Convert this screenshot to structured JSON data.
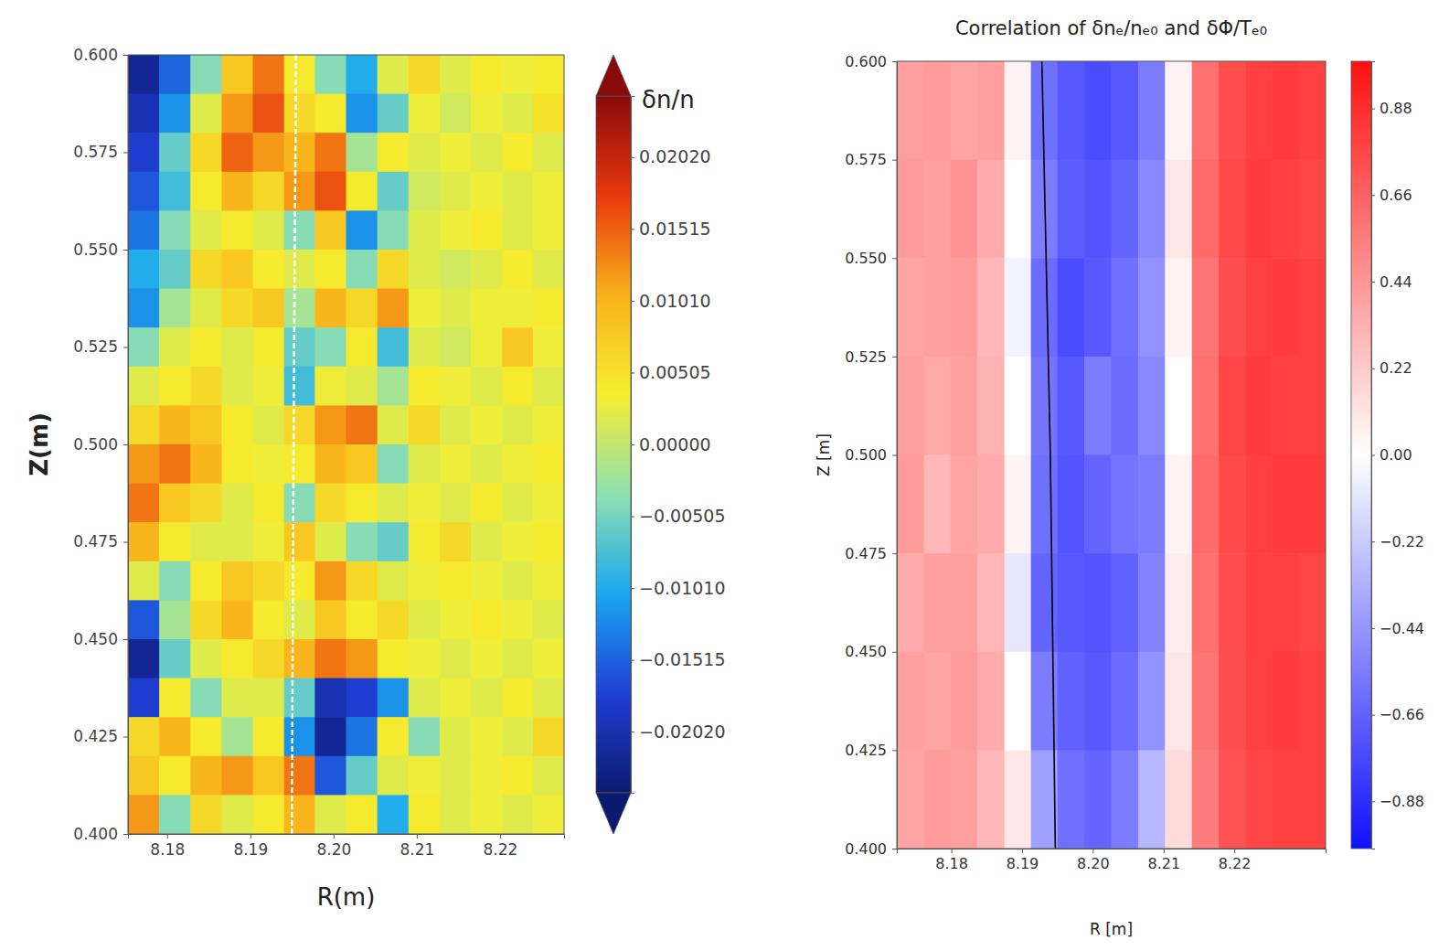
{
  "chart_data": [
    {
      "type": "heatmap",
      "xlabel": "R(m)",
      "ylabel": "Z(m)",
      "xlim": [
        8.1753,
        8.2277
      ],
      "ylim": [
        0.4,
        0.6
      ],
      "xticks": [
        8.18,
        8.19,
        {
          "value": 8.2,
          "label": "8.20"
        },
        8.21,
        8.22
      ],
      "yticks": [
        {
          "value": 0.4,
          "label": "0.400"
        },
        0.425,
        {
          "value": 0.45,
          "label": "0.450"
        },
        0.475,
        {
          "value": 0.5,
          "label": "0.500"
        },
        0.525,
        {
          "value": 0.55,
          "label": "0.550"
        },
        0.575,
        {
          "value": 0.6,
          "label": "0.600"
        }
      ],
      "x": [
        8.1772,
        8.1809,
        8.1847,
        8.1884,
        8.1922,
        8.1959,
        8.1996,
        8.2034,
        8.2071,
        8.2109,
        8.2146,
        8.2184,
        8.2221,
        8.2258
      ],
      "y": [
        0.595,
        0.585,
        0.575,
        0.565,
        0.555,
        0.545,
        0.535,
        0.525,
        0.515,
        0.505,
        0.495,
        0.485,
        0.475,
        0.465,
        0.455,
        0.445,
        0.435,
        0.425,
        0.415,
        0.405
      ],
      "values": [
        [
          -0.022,
          -0.015,
          -0.004,
          0.008,
          0.014,
          0.004,
          -0.004,
          -0.01,
          0.002,
          0.006,
          0.002,
          0.004,
          0.003,
          0.004
        ],
        [
          -0.02,
          -0.012,
          0.002,
          0.012,
          0.016,
          0.006,
          0.004,
          -0.012,
          -0.006,
          0.003,
          0.001,
          0.003,
          0.002,
          0.005
        ],
        [
          -0.018,
          -0.006,
          0.006,
          0.015,
          0.012,
          0.01,
          0.014,
          -0.002,
          0.004,
          0.002,
          0.003,
          0.002,
          0.004,
          0.002
        ],
        [
          -0.016,
          -0.008,
          0.004,
          0.01,
          0.006,
          0.012,
          0.016,
          0.004,
          -0.006,
          0.001,
          0.002,
          0.003,
          0.002,
          0.003
        ],
        [
          -0.014,
          -0.004,
          0.002,
          0.004,
          0.002,
          -0.004,
          0.008,
          -0.012,
          -0.004,
          0.002,
          0.003,
          0.004,
          0.002,
          0.003
        ],
        [
          -0.01,
          -0.006,
          0.006,
          0.008,
          0.004,
          0.002,
          0.004,
          -0.004,
          0.006,
          0.002,
          0.001,
          0.002,
          0.004,
          0.002
        ],
        [
          -0.012,
          -0.002,
          0.002,
          0.006,
          0.008,
          -0.002,
          0.01,
          0.006,
          0.012,
          0.003,
          0.002,
          0.003,
          0.003,
          0.004
        ],
        [
          -0.004,
          0.002,
          0.004,
          0.002,
          0.004,
          -0.006,
          -0.004,
          0.004,
          -0.008,
          0.002,
          0.001,
          0.003,
          0.008,
          0.003
        ],
        [
          0.002,
          0.004,
          0.006,
          0.002,
          0.003,
          -0.008,
          0.003,
          0.002,
          -0.002,
          0.004,
          0.003,
          0.002,
          0.004,
          0.002
        ],
        [
          0.006,
          0.01,
          0.008,
          0.004,
          0.002,
          0.006,
          0.012,
          0.014,
          0.002,
          0.006,
          0.002,
          0.003,
          0.002,
          0.003
        ],
        [
          0.012,
          0.014,
          0.01,
          0.004,
          0.003,
          0.004,
          0.01,
          0.008,
          -0.004,
          0.002,
          0.003,
          0.002,
          0.003,
          0.004
        ],
        [
          0.014,
          0.008,
          0.006,
          0.002,
          0.004,
          -0.004,
          0.006,
          0.004,
          0.002,
          0.003,
          0.002,
          0.004,
          0.002,
          0.003
        ],
        [
          0.01,
          0.004,
          0.002,
          0.002,
          0.003,
          0.008,
          0.002,
          -0.004,
          -0.006,
          0.004,
          0.006,
          0.002,
          0.003,
          0.004
        ],
        [
          0.002,
          -0.004,
          0.004,
          0.008,
          0.006,
          0.004,
          0.012,
          0.006,
          0.002,
          0.003,
          0.004,
          0.003,
          0.002,
          0.003
        ],
        [
          -0.016,
          -0.002,
          0.006,
          0.01,
          0.004,
          0.002,
          0.008,
          0.004,
          0.006,
          0.002,
          0.003,
          0.004,
          0.003,
          0.002
        ],
        [
          -0.022,
          -0.006,
          0.002,
          0.004,
          0.006,
          0.01,
          0.014,
          0.012,
          0.004,
          0.003,
          0.002,
          0.003,
          0.002,
          0.003
        ],
        [
          -0.018,
          0.004,
          -0.004,
          0.002,
          0.002,
          -0.006,
          -0.02,
          -0.018,
          -0.012,
          0.002,
          0.003,
          0.002,
          0.004,
          0.002
        ],
        [
          0.006,
          0.01,
          0.004,
          -0.002,
          0.004,
          -0.012,
          -0.022,
          -0.014,
          0.004,
          -0.004,
          0.002,
          0.003,
          0.002,
          0.006
        ],
        [
          0.008,
          0.004,
          0.01,
          0.012,
          0.008,
          0.014,
          -0.016,
          -0.006,
          0.002,
          0.003,
          0.002,
          0.003,
          0.004,
          0.002
        ],
        [
          0.012,
          -0.004,
          0.006,
          0.002,
          0.004,
          0.01,
          0.002,
          0.004,
          -0.01,
          0.004,
          0.002,
          0.003,
          0.002,
          0.003
        ]
      ],
      "colorbar": {
        "label": "δn/n",
        "range": [
          -0.0245,
          0.0245
        ],
        "ticks": [
          {
            "value": -0.0202,
            "label": "−0.02020"
          },
          {
            "value": -0.01515,
            "label": "−0.01515"
          },
          {
            "value": -0.0101,
            "label": "−0.01010"
          },
          {
            "value": -0.00505,
            "label": "−0.00505"
          },
          {
            "value": 0,
            "label": "0.00000"
          },
          0.00505,
          {
            "value": 0.0101,
            "label": "0.01010"
          },
          0.01515,
          {
            "value": 0.0202,
            "label": "0.02020"
          }
        ]
      },
      "separatrix": {
        "R": [
          8.1955,
          8.1952,
          8.195
        ],
        "Z": [
          0.6,
          0.5,
          0.4
        ],
        "color": "#ffffff",
        "line_style": "dashed"
      }
    },
    {
      "type": "heatmap",
      "title": "Correlation of δnₑ/nₑ₀ and δΦ/Tₑ₀",
      "xlabel": "R [m]",
      "ylabel": "Z [m]",
      "xlim": [
        8.1723,
        8.2329
      ],
      "ylim": [
        0.4,
        0.6
      ],
      "xticks": [
        8.18,
        8.19,
        {
          "value": 8.2,
          "label": "8.20"
        },
        8.21,
        8.22
      ],
      "yticks": [
        {
          "value": 0.4,
          "label": "0.400"
        },
        0.425,
        {
          "value": 0.45,
          "label": "0.450"
        },
        0.475,
        {
          "value": 0.5,
          "label": "0.500"
        },
        0.525,
        {
          "value": 0.55,
          "label": "0.550"
        },
        0.575,
        {
          "value": 0.6,
          "label": "0.600"
        }
      ],
      "x": [
        8.1742,
        8.178,
        8.1818,
        8.1856,
        8.1894,
        8.1931,
        8.1969,
        8.2007,
        8.2045,
        8.2083,
        8.2121,
        8.2159,
        8.2197,
        8.2234,
        8.2272,
        8.231
      ],
      "y": [
        0.5875,
        0.5625,
        0.5375,
        0.5125,
        0.4875,
        0.4625,
        0.4375,
        0.4125
      ],
      "values": [
        [
          0.4,
          0.42,
          0.38,
          0.4,
          0.05,
          -0.6,
          -0.7,
          -0.75,
          -0.7,
          -0.55,
          0.05,
          0.6,
          0.75,
          0.8,
          0.82,
          0.8
        ],
        [
          0.42,
          0.4,
          0.45,
          0.35,
          0.0,
          -0.55,
          -0.68,
          -0.72,
          -0.65,
          -0.5,
          0.1,
          0.62,
          0.76,
          0.82,
          0.8,
          0.78
        ],
        [
          0.38,
          0.4,
          0.42,
          0.3,
          -0.05,
          -0.62,
          -0.75,
          -0.7,
          -0.6,
          -0.45,
          0.05,
          0.58,
          0.74,
          0.8,
          0.82,
          0.8
        ],
        [
          0.4,
          0.36,
          0.4,
          0.32,
          0.0,
          -0.58,
          -0.7,
          -0.55,
          -0.62,
          -0.5,
          0.0,
          0.6,
          0.78,
          0.82,
          0.8,
          0.8
        ],
        [
          0.42,
          0.3,
          0.38,
          0.35,
          0.05,
          -0.6,
          -0.72,
          -0.65,
          -0.58,
          -0.55,
          0.05,
          0.62,
          0.76,
          0.8,
          0.82,
          0.82
        ],
        [
          0.35,
          0.4,
          0.4,
          0.3,
          -0.1,
          -0.65,
          -0.7,
          -0.72,
          -0.66,
          -0.52,
          0.08,
          0.6,
          0.75,
          0.8,
          0.8,
          0.78
        ],
        [
          0.4,
          0.38,
          0.42,
          0.35,
          0.0,
          -0.55,
          -0.66,
          -0.7,
          -0.62,
          -0.45,
          0.1,
          0.58,
          0.74,
          0.8,
          0.82,
          0.8
        ],
        [
          0.38,
          0.42,
          0.4,
          0.3,
          0.1,
          -0.4,
          -0.6,
          -0.65,
          -0.55,
          -0.3,
          0.15,
          0.55,
          0.72,
          0.78,
          0.8,
          0.8
        ]
      ],
      "colorbar": {
        "range": [
          -1.0,
          1.0
        ],
        "ticks": [
          {
            "value": -0.88,
            "label": "−0.88"
          },
          {
            "value": -0.66,
            "label": "−0.66"
          },
          {
            "value": -0.44,
            "label": "−0.44"
          },
          {
            "value": -0.22,
            "label": "−0.22"
          },
          {
            "value": 0,
            "label": "0.00"
          },
          0.22,
          0.44,
          0.66,
          0.88
        ]
      },
      "separatrix": {
        "R": [
          8.1928,
          8.194,
          8.1947
        ],
        "Z": [
          0.6,
          0.5,
          0.4
        ],
        "color": "#000000",
        "line_style": "solid"
      }
    }
  ]
}
